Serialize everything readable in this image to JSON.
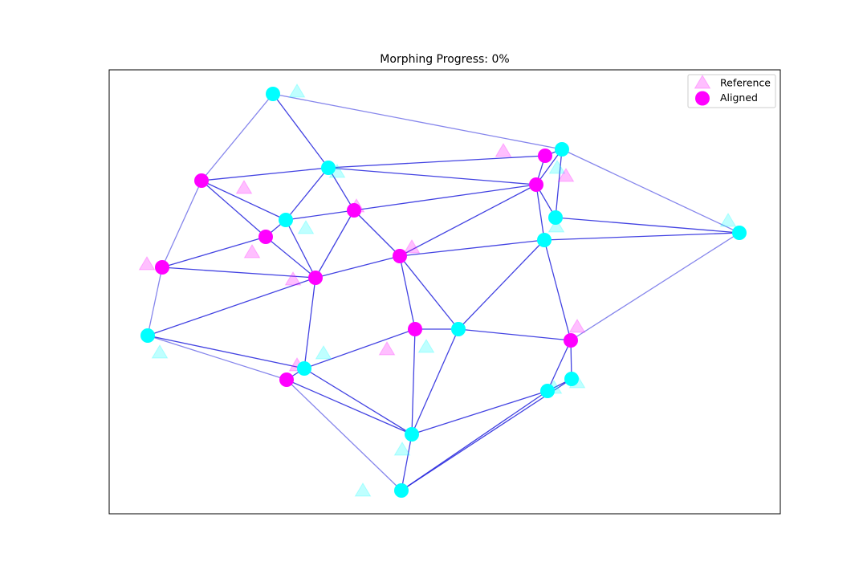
{
  "chart_data": {
    "type": "network-scatter",
    "title": "Morphing Progress: 0%",
    "xlim": [
      0,
      836
    ],
    "ylim": [
      0,
      553
    ],
    "legend": "upper right",
    "edge_color": "#2222dd",
    "series": [
      {
        "name": "Reference",
        "marker": "triangle",
        "color": "#ff00ff",
        "opacity": 0.25,
        "x": [
          234,
          284,
          168,
          245,
          308,
          178,
          47,
          229,
          377,
          63,
          267,
          234,
          346,
          395,
          365,
          316,
          491,
          558,
          569,
          557,
          771,
          583,
          583,
          554
        ],
        "values": [
          525,
          425,
          405,
          355,
          382,
          325,
          310,
          291,
          331,
          200,
          199,
          184,
          204,
          207,
          79,
          28,
          451,
          430,
          420,
          357,
          364,
          232,
          163,
          156
        ],
        "colors": [
          "#00ffff",
          "#00ffff",
          "#ff00ff",
          "#00ffff",
          "#ff00ff",
          "#ff00ff",
          "#ff00ff",
          "#ff00ff",
          "#ff00ff",
          "#00ffff",
          "#00ffff",
          "#ff00ff",
          "#ff00ff",
          "#00ffff",
          "#00ffff",
          "#00ffff",
          "#ff00ff",
          "#00ffff",
          "#ff00ff",
          "#00ffff",
          "#00ffff",
          "#ff00ff",
          "#00ffff",
          "#00ffff"
        ]
      },
      {
        "name": "Aligned",
        "marker": "circle",
        "color": "#ff00ff",
        "opacity": 1,
        "x": [
          204,
          273,
          115,
          220,
          305,
          195,
          66,
          257,
          362,
          48,
          243,
          221,
          381,
          435,
          377,
          364,
          543,
          564,
          532,
          556,
          542,
          785,
          575,
          576,
          546
        ],
        "values": [
          523,
          431,
          415,
          366,
          378,
          345,
          307,
          294,
          321,
          222,
          181,
          167,
          230,
          230,
          99,
          29,
          446,
          454,
          410,
          369,
          341,
          350,
          216,
          168,
          153
        ],
        "colors": [
          "#00ffff",
          "#00ffff",
          "#ff00ff",
          "#00ffff",
          "#ff00ff",
          "#ff00ff",
          "#ff00ff",
          "#ff00ff",
          "#ff00ff",
          "#00ffff",
          "#00ffff",
          "#ff00ff",
          "#ff00ff",
          "#00ffff",
          "#00ffff",
          "#00ffff",
          "#ff00ff",
          "#00ffff",
          "#ff00ff",
          "#00ffff",
          "#00ffff",
          "#00ffff",
          "#ff00ff",
          "#00ffff",
          "#00ffff"
        ]
      }
    ],
    "edges": [
      [
        0,
        1
      ],
      [
        1,
        2
      ],
      [
        1,
        3
      ],
      [
        1,
        4
      ],
      [
        1,
        18
      ],
      [
        1,
        16
      ],
      [
        2,
        5
      ],
      [
        2,
        3
      ],
      [
        3,
        4
      ],
      [
        3,
        5
      ],
      [
        3,
        7
      ],
      [
        4,
        7
      ],
      [
        4,
        8
      ],
      [
        4,
        18
      ],
      [
        5,
        6
      ],
      [
        5,
        7
      ],
      [
        6,
        7
      ],
      [
        7,
        9
      ],
      [
        7,
        8
      ],
      [
        7,
        10
      ],
      [
        8,
        18
      ],
      [
        8,
        12
      ],
      [
        8,
        13
      ],
      [
        8,
        20
      ],
      [
        9,
        10
      ],
      [
        10,
        12
      ],
      [
        10,
        11
      ],
      [
        10,
        14
      ],
      [
        11,
        14
      ],
      [
        12,
        13
      ],
      [
        12,
        14
      ],
      [
        13,
        14
      ],
      [
        13,
        20
      ],
      [
        13,
        22
      ],
      [
        14,
        24
      ],
      [
        15,
        14
      ],
      [
        15,
        24
      ],
      [
        15,
        23
      ],
      [
        16,
        17
      ],
      [
        16,
        18
      ],
      [
        17,
        18
      ],
      [
        17,
        19
      ],
      [
        18,
        19
      ],
      [
        18,
        20
      ],
      [
        19,
        21
      ],
      [
        20,
        21
      ],
      [
        20,
        22
      ],
      [
        22,
        24
      ],
      [
        22,
        23
      ],
      [
        23,
        24
      ]
    ],
    "faint_edges": [
      [
        0,
        2
      ],
      [
        0,
        17
      ],
      [
        2,
        6
      ],
      [
        6,
        9
      ],
      [
        9,
        11
      ],
      [
        11,
        15
      ],
      [
        17,
        21
      ],
      [
        22,
        21
      ]
    ]
  }
}
